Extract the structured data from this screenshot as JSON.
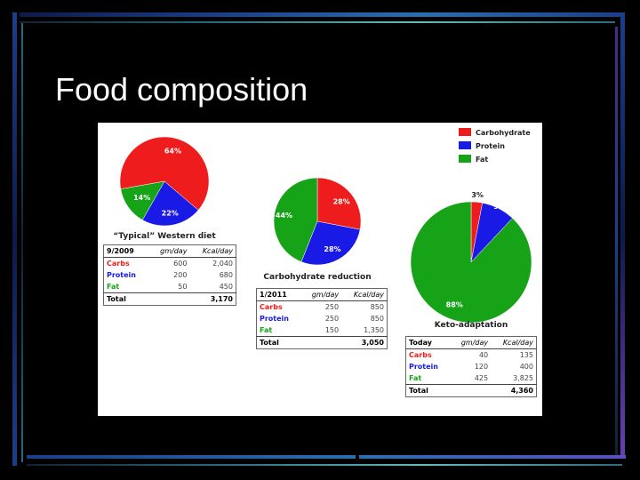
{
  "slide": {
    "title": "Food composition"
  },
  "colors": {
    "carbohydrate": "#ee1c1c",
    "protein": "#1a1ae6",
    "fat": "#17a317",
    "background": "#000000"
  },
  "legend": [
    {
      "label": "Carbohydrate",
      "color": "#ee1c1c"
    },
    {
      "label": "Protein",
      "color": "#1a1ae6"
    },
    {
      "label": "Fat",
      "color": "#17a317"
    }
  ],
  "chart_data": [
    {
      "type": "pie",
      "title": "“Typical” Western diet",
      "slices": [
        {
          "name": "Carbohydrate",
          "value": 64,
          "label": "64%"
        },
        {
          "name": "Protein",
          "value": 22,
          "label": "22%"
        },
        {
          "name": "Fat",
          "value": 14,
          "label": "14%"
        }
      ]
    },
    {
      "type": "pie",
      "title": "Carbohydrate reduction",
      "slices": [
        {
          "name": "Carbohydrate",
          "value": 28,
          "label": "28%"
        },
        {
          "name": "Protein",
          "value": 28,
          "label": "28%"
        },
        {
          "name": "Fat",
          "value": 44,
          "label": "44%"
        }
      ]
    },
    {
      "type": "pie",
      "title": "Keto-adaptation",
      "slices": [
        {
          "name": "Carbohydrate",
          "value": 3,
          "label": "3%"
        },
        {
          "name": "Protein",
          "value": 9,
          "label": "9%"
        },
        {
          "name": "Fat",
          "value": 88,
          "label": "88%"
        }
      ]
    }
  ],
  "tables": [
    {
      "header": [
        "9/2009",
        "gm/day",
        "Kcal/day"
      ],
      "rows": [
        {
          "label": "Carbs",
          "gm": "600",
          "kcal": "2,040"
        },
        {
          "label": "Protein",
          "gm": "200",
          "kcal": "680"
        },
        {
          "label": "Fat",
          "gm": "50",
          "kcal": "450"
        }
      ],
      "total": {
        "label": "Total",
        "kcal": "3,170"
      }
    },
    {
      "header": [
        "1/2011",
        "gm/day",
        "Kcal/day"
      ],
      "rows": [
        {
          "label": "Carbs",
          "gm": "250",
          "kcal": "850"
        },
        {
          "label": "Protein",
          "gm": "250",
          "kcal": "850"
        },
        {
          "label": "Fat",
          "gm": "150",
          "kcal": "1,350"
        }
      ],
      "total": {
        "label": "Total",
        "kcal": "3,050"
      }
    },
    {
      "header": [
        "Today",
        "gm/day",
        "Kcal/day"
      ],
      "rows": [
        {
          "label": "Carbs",
          "gm": "40",
          "kcal": "135"
        },
        {
          "label": "Protein",
          "gm": "120",
          "kcal": "400"
        },
        {
          "label": "Fat",
          "gm": "425",
          "kcal": "3,825"
        }
      ],
      "total": {
        "label": "Total",
        "kcal": "4,360"
      }
    }
  ]
}
